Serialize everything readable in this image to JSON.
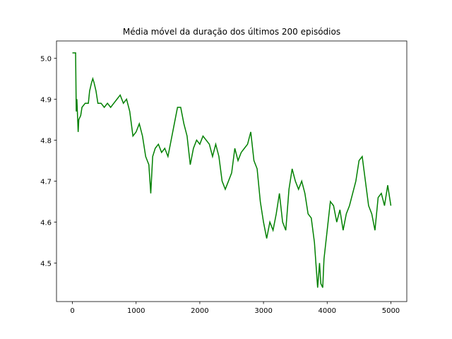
{
  "chart_data": {
    "type": "line",
    "title": "Média móvel da duração dos últimos 200 episódios",
    "x": [
      0,
      50,
      60,
      70,
      80,
      90,
      100,
      130,
      150,
      200,
      250,
      270,
      300,
      320,
      340,
      370,
      400,
      450,
      500,
      550,
      600,
      650,
      700,
      750,
      800,
      850,
      900,
      950,
      1000,
      1050,
      1100,
      1150,
      1200,
      1230,
      1260,
      1300,
      1350,
      1400,
      1450,
      1500,
      1550,
      1600,
      1650,
      1700,
      1750,
      1800,
      1850,
      1900,
      1950,
      2000,
      2050,
      2100,
      2150,
      2200,
      2250,
      2300,
      2350,
      2400,
      2450,
      2500,
      2550,
      2600,
      2650,
      2700,
      2750,
      2800,
      2850,
      2900,
      2950,
      3000,
      3050,
      3100,
      3150,
      3200,
      3250,
      3300,
      3350,
      3400,
      3450,
      3500,
      3550,
      3600,
      3650,
      3700,
      3750,
      3800,
      3850,
      3880,
      3900,
      3930,
      3950,
      4000,
      4050,
      4100,
      4150,
      4200,
      4250,
      4300,
      4350,
      4400,
      4450,
      4500,
      4550,
      4600,
      4650,
      4700,
      4750,
      4800,
      4850,
      4900,
      4950,
      5000
    ],
    "series": [
      {
        "color": "#008000",
        "values": [
          5.013,
          5.013,
          4.87,
          4.9,
          4.86,
          4.82,
          4.85,
          4.86,
          4.88,
          4.89,
          4.89,
          4.92,
          4.94,
          4.95,
          4.94,
          4.92,
          4.89,
          4.89,
          4.88,
          4.89,
          4.88,
          4.89,
          4.9,
          4.91,
          4.89,
          4.9,
          4.87,
          4.81,
          4.82,
          4.84,
          4.81,
          4.76,
          4.74,
          4.67,
          4.76,
          4.78,
          4.79,
          4.77,
          4.78,
          4.76,
          4.8,
          4.84,
          4.88,
          4.88,
          4.84,
          4.81,
          4.74,
          4.78,
          4.8,
          4.79,
          4.81,
          4.8,
          4.79,
          4.76,
          4.79,
          4.76,
          4.7,
          4.68,
          4.7,
          4.72,
          4.78,
          4.75,
          4.77,
          4.78,
          4.79,
          4.82,
          4.75,
          4.73,
          4.65,
          4.6,
          4.56,
          4.6,
          4.58,
          4.62,
          4.67,
          4.6,
          4.58,
          4.68,
          4.73,
          4.7,
          4.68,
          4.7,
          4.67,
          4.62,
          4.61,
          4.55,
          4.44,
          4.5,
          4.45,
          4.44,
          4.51,
          4.58,
          4.65,
          4.64,
          4.6,
          4.63,
          4.58,
          4.62,
          4.64,
          4.67,
          4.7,
          4.75,
          4.76,
          4.7,
          4.64,
          4.62,
          4.58,
          4.66,
          4.67,
          4.64,
          4.69,
          4.64
        ]
      }
    ],
    "xlim": [
      -250,
      5250
    ],
    "xticks": [
      0,
      1000,
      2000,
      3000,
      4000,
      5000
    ],
    "ylim": [
      4.406,
      5.042
    ],
    "yticks": [
      4.5,
      4.6,
      4.7,
      4.8,
      4.9,
      {
        "value": 5,
        "label": "5.0"
      }
    ]
  }
}
